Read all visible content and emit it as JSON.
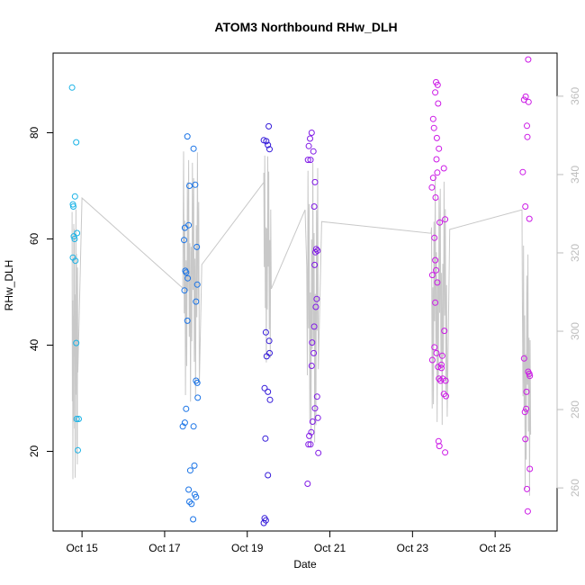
{
  "chart_data": {
    "type": "scatter",
    "title": "ATOM3 Northbound RHw_DLH",
    "xlabel": "Date",
    "ylabel": "RHw_DLH",
    "x_unit": "date (October)",
    "xlim": [
      14.3,
      26.5
    ],
    "ylim": [
      5,
      95
    ],
    "y2lim": [
      249,
      371
    ],
    "x_ticks": [
      15,
      17,
      19,
      21,
      23,
      25
    ],
    "x_tick_labels": [
      "Oct 15",
      "Oct 17",
      "Oct 19",
      "Oct 21",
      "Oct 23",
      "Oct 25"
    ],
    "y_ticks": [
      20,
      40,
      60,
      80
    ],
    "y_tick_labels": [
      "20",
      "40",
      "60",
      "80"
    ],
    "y2_ticks": [
      260,
      280,
      300,
      320,
      340,
      360
    ],
    "y2_tick_labels": [
      "260",
      "280",
      "300",
      "320",
      "340",
      "360"
    ],
    "grid": false,
    "legend": "none",
    "colors": {
      "line": "#c8c8c8",
      "right_axis": "#bdbdbd",
      "frame": "#000000"
    },
    "series": [
      {
        "color": "#19b2e6",
        "points": [
          [
            14.76,
            88.5
          ],
          [
            14.86,
            78.2
          ],
          [
            14.78,
            66.5
          ],
          [
            14.79,
            66.1
          ],
          [
            14.83,
            68.0
          ],
          [
            14.88,
            61.1
          ],
          [
            14.8,
            60.5
          ],
          [
            14.82,
            60.0
          ],
          [
            14.78,
            56.5
          ],
          [
            14.84,
            55.9
          ],
          [
            14.86,
            40.4
          ],
          [
            14.87,
            26.1
          ],
          [
            14.92,
            26.1
          ],
          [
            14.9,
            20.2
          ]
        ]
      },
      {
        "color": "#1973e6",
        "points": [
          [
            17.55,
            79.3
          ],
          [
            17.7,
            77.0
          ],
          [
            17.6,
            70.0
          ],
          [
            17.74,
            70.2
          ],
          [
            17.49,
            62.1
          ],
          [
            17.58,
            62.6
          ],
          [
            17.47,
            59.8
          ],
          [
            17.78,
            58.5
          ],
          [
            17.5,
            54.0
          ],
          [
            17.52,
            53.7
          ],
          [
            17.56,
            52.6
          ],
          [
            17.79,
            51.4
          ],
          [
            17.48,
            50.3
          ],
          [
            17.76,
            48.2
          ],
          [
            17.55,
            44.6
          ],
          [
            17.76,
            33.3
          ],
          [
            17.79,
            32.9
          ],
          [
            17.8,
            30.1
          ],
          [
            17.52,
            28.0
          ],
          [
            17.44,
            24.7
          ],
          [
            17.7,
            24.7
          ],
          [
            17.49,
            25.4
          ],
          [
            17.72,
            17.3
          ],
          [
            17.62,
            16.4
          ],
          [
            17.58,
            12.8
          ],
          [
            17.73,
            11.9
          ],
          [
            17.76,
            11.4
          ],
          [
            17.6,
            10.5
          ],
          [
            17.65,
            10.1
          ],
          [
            17.69,
            7.2
          ]
        ]
      },
      {
        "color": "#3319d9",
        "points": [
          [
            19.52,
            81.2
          ],
          [
            19.4,
            78.6
          ],
          [
            19.46,
            78.4
          ],
          [
            19.5,
            77.7
          ],
          [
            19.54,
            76.9
          ],
          [
            19.45,
            42.4
          ],
          [
            19.53,
            40.8
          ],
          [
            19.54,
            38.5
          ],
          [
            19.47,
            37.9
          ],
          [
            19.42,
            31.9
          ],
          [
            19.5,
            31.2
          ],
          [
            19.55,
            29.7
          ],
          [
            19.44,
            22.4
          ],
          [
            19.5,
            15.5
          ],
          [
            19.42,
            7.4
          ],
          [
            19.45,
            7.0
          ],
          [
            19.4,
            6.5
          ]
        ]
      },
      {
        "color": "#8019e6",
        "points": [
          [
            20.56,
            80.0
          ],
          [
            20.52,
            78.9
          ],
          [
            20.49,
            77.5
          ],
          [
            20.6,
            76.5
          ],
          [
            20.47,
            74.9
          ],
          [
            20.53,
            74.9
          ],
          [
            20.64,
            70.7
          ],
          [
            20.62,
            66.1
          ],
          [
            20.67,
            58.1
          ],
          [
            20.7,
            57.8
          ],
          [
            20.65,
            57.5
          ],
          [
            20.63,
            55.1
          ],
          [
            20.68,
            48.7
          ],
          [
            20.66,
            47.2
          ],
          [
            20.62,
            43.5
          ],
          [
            20.57,
            40.5
          ],
          [
            20.61,
            38.5
          ],
          [
            20.56,
            36.1
          ],
          [
            20.69,
            30.3
          ],
          [
            20.64,
            28.1
          ],
          [
            20.71,
            26.3
          ],
          [
            20.58,
            25.6
          ],
          [
            20.55,
            23.6
          ],
          [
            20.5,
            22.9
          ],
          [
            20.48,
            21.3
          ],
          [
            20.53,
            21.3
          ],
          [
            20.72,
            19.7
          ],
          [
            20.46,
            13.9
          ]
        ]
      },
      {
        "color": "#cc19e6",
        "points": [
          [
            23.57,
            89.5
          ],
          [
            23.61,
            89.0
          ],
          [
            23.55,
            87.6
          ],
          [
            23.62,
            85.5
          ],
          [
            23.5,
            82.6
          ],
          [
            23.52,
            80.9
          ],
          [
            23.59,
            79.0
          ],
          [
            23.64,
            77.0
          ],
          [
            23.58,
            75.0
          ],
          [
            23.6,
            72.5
          ],
          [
            23.76,
            73.3
          ],
          [
            23.47,
            69.7
          ],
          [
            23.56,
            67.8
          ],
          [
            23.5,
            71.5
          ],
          [
            23.79,
            63.7
          ],
          [
            23.66,
            63.1
          ],
          [
            23.53,
            60.2
          ],
          [
            23.55,
            56.0
          ],
          [
            23.57,
            54.1
          ],
          [
            23.48,
            53.2
          ],
          [
            23.6,
            51.8
          ],
          [
            23.55,
            48.0
          ],
          [
            23.77,
            42.7
          ],
          [
            23.53,
            39.6
          ],
          [
            23.58,
            38.5
          ],
          [
            23.72,
            38.0
          ],
          [
            23.48,
            37.2
          ],
          [
            23.7,
            36.3
          ],
          [
            23.62,
            35.9
          ],
          [
            23.7,
            35.7
          ],
          [
            23.64,
            33.7
          ],
          [
            23.68,
            33.3
          ],
          [
            23.73,
            33.7
          ],
          [
            23.8,
            33.3
          ],
          [
            23.76,
            30.8
          ],
          [
            23.81,
            30.4
          ],
          [
            23.63,
            21.9
          ],
          [
            23.65,
            21.0
          ],
          [
            23.79,
            19.8
          ],
          [
            25.8,
            93.8
          ],
          [
            25.7,
            86.2
          ],
          [
            25.74,
            86.8
          ],
          [
            25.81,
            85.8
          ],
          [
            25.77,
            81.3
          ],
          [
            25.78,
            79.2
          ],
          [
            25.67,
            72.6
          ],
          [
            25.73,
            66.1
          ],
          [
            25.83,
            63.8
          ],
          [
            25.7,
            37.5
          ],
          [
            25.8,
            35.0
          ],
          [
            25.83,
            34.6
          ],
          [
            25.84,
            34.2
          ],
          [
            25.76,
            31.2
          ],
          [
            25.75,
            28.0
          ],
          [
            25.72,
            27.4
          ],
          [
            25.73,
            22.3
          ],
          [
            25.84,
            16.7
          ],
          [
            25.77,
            12.9
          ],
          [
            25.79,
            8.7
          ]
        ]
      }
    ]
  }
}
